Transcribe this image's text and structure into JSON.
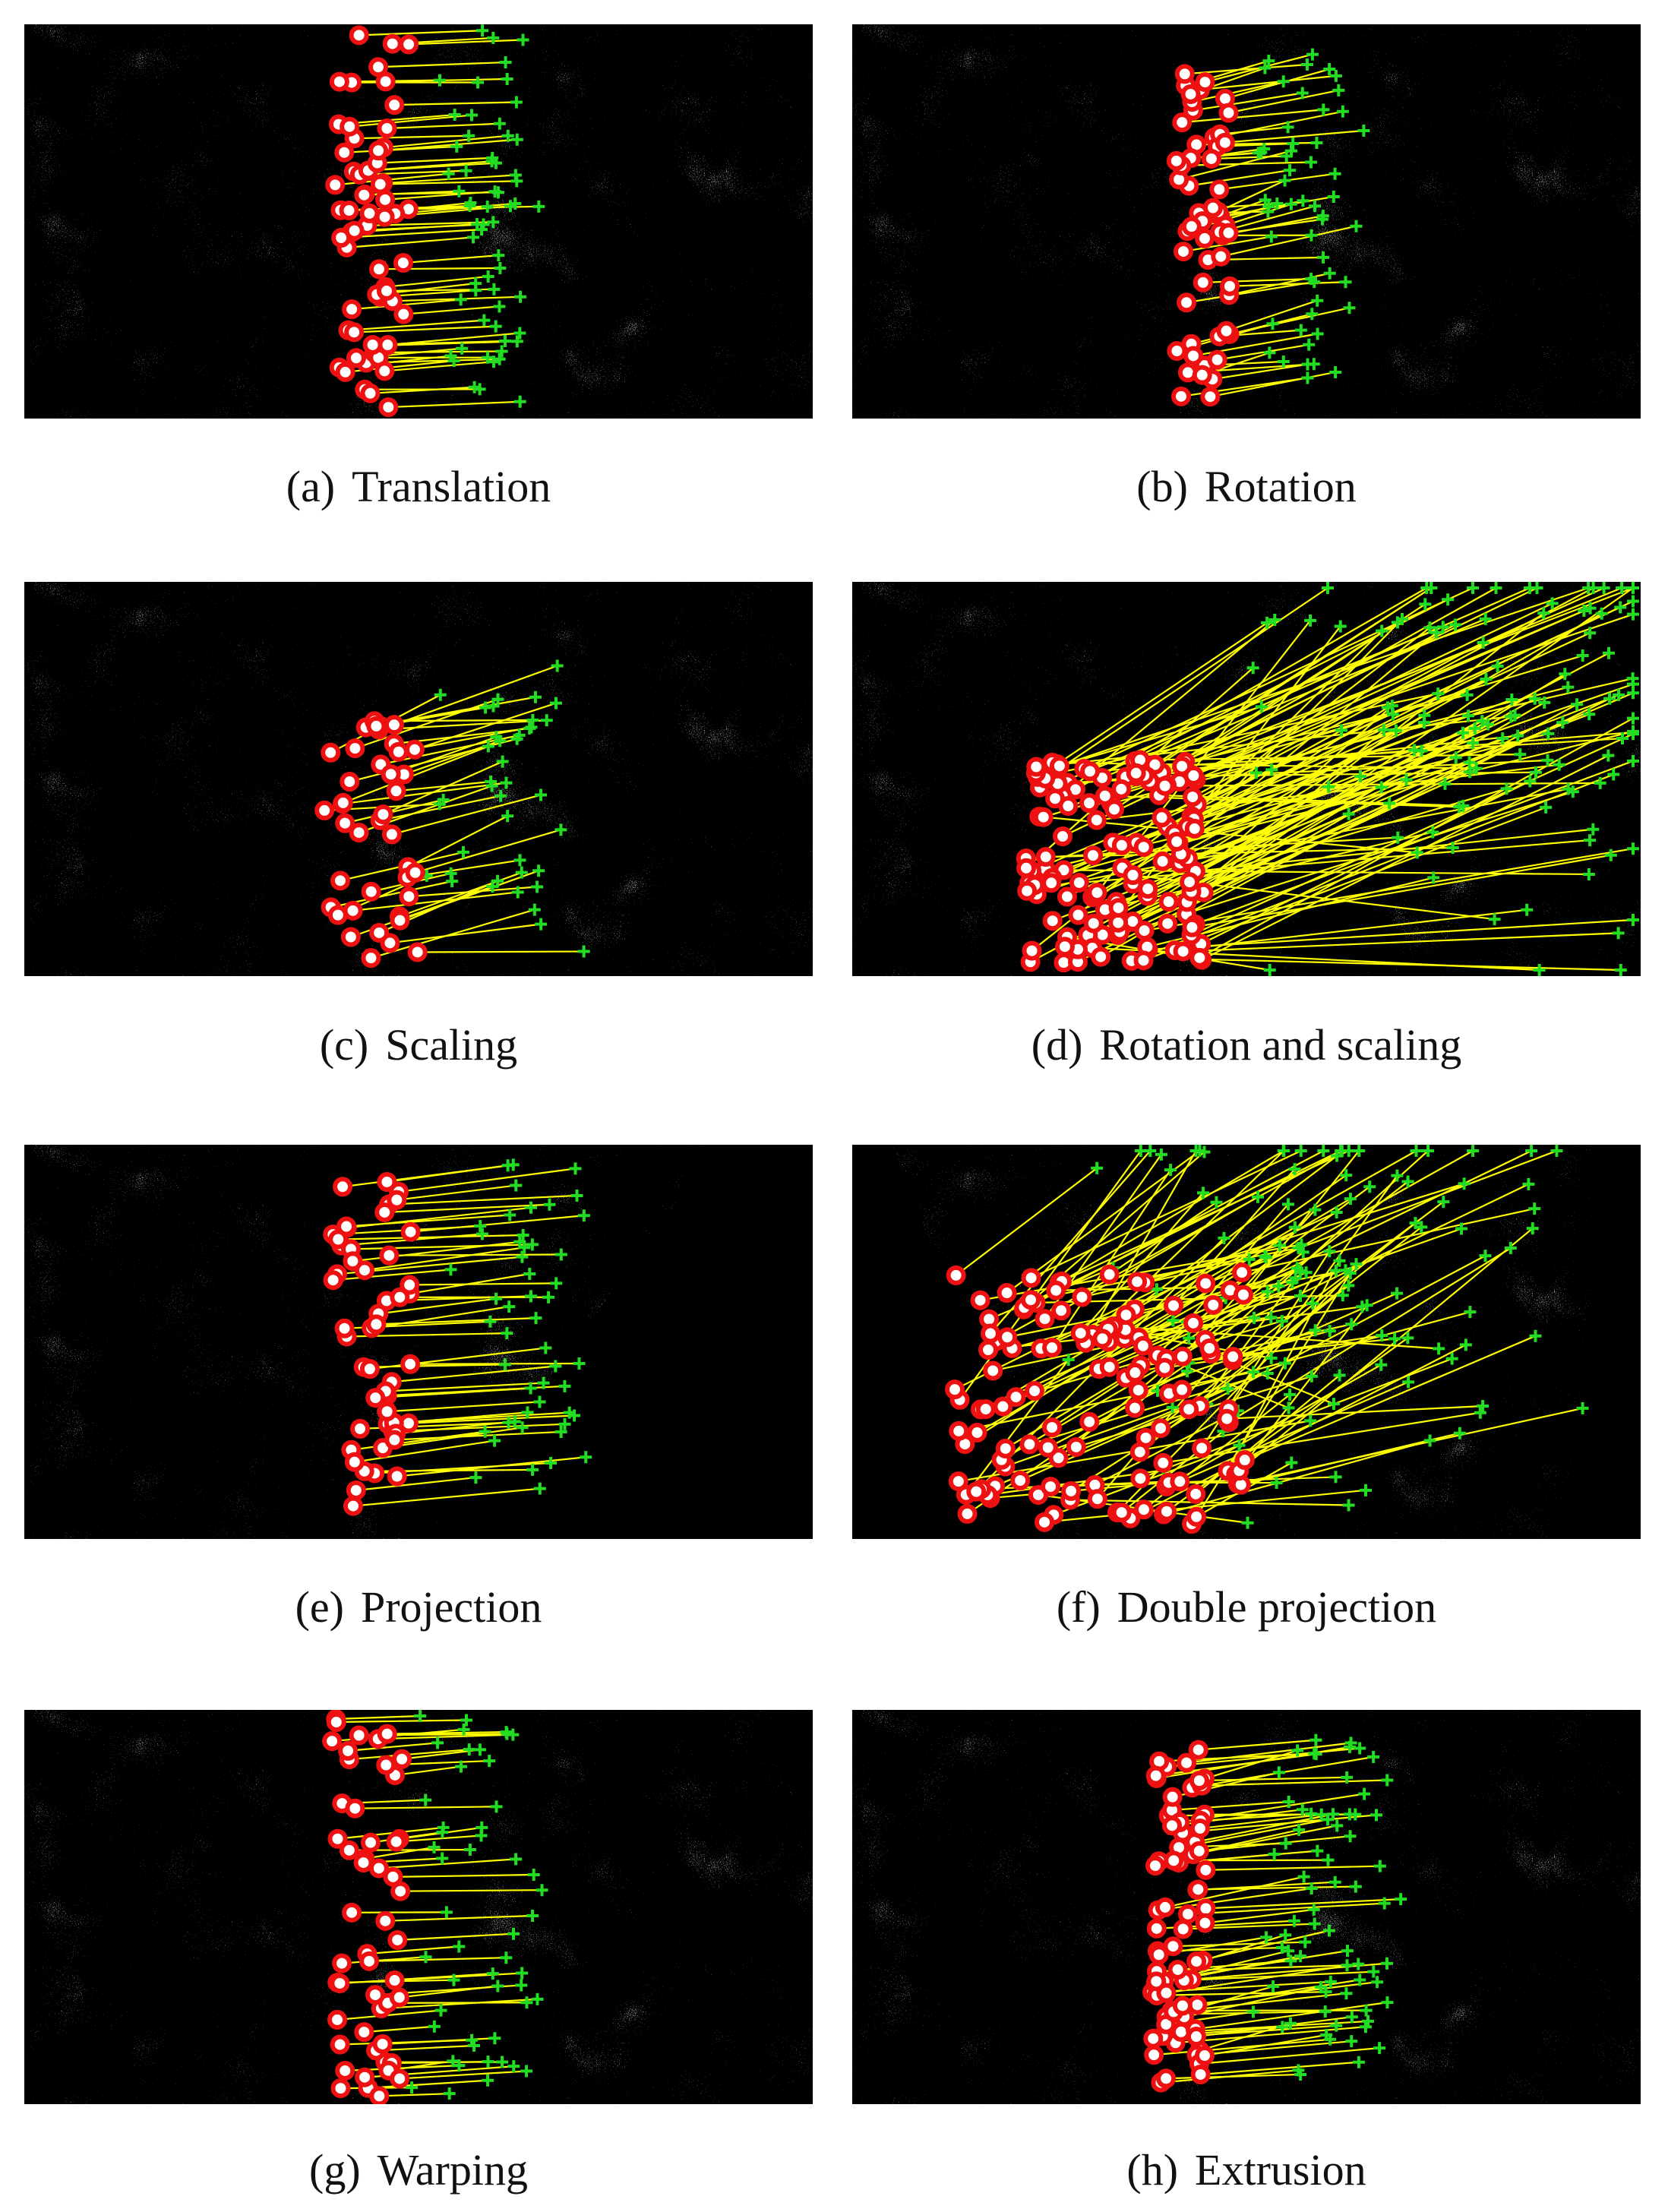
{
  "figure": {
    "panels": [
      {
        "label": "(a)",
        "text": "Translation"
      },
      {
        "label": "(b)",
        "text": "Rotation"
      },
      {
        "label": "(c)",
        "text": "Scaling"
      },
      {
        "label": "(d)",
        "text": "Rotation and scaling"
      },
      {
        "label": "(e)",
        "text": "Projection"
      },
      {
        "label": "(f)",
        "text": "Double projection"
      },
      {
        "label": "(g)",
        "text": "Warping"
      },
      {
        "label": "(h)",
        "text": "Extrusion"
      }
    ]
  }
}
